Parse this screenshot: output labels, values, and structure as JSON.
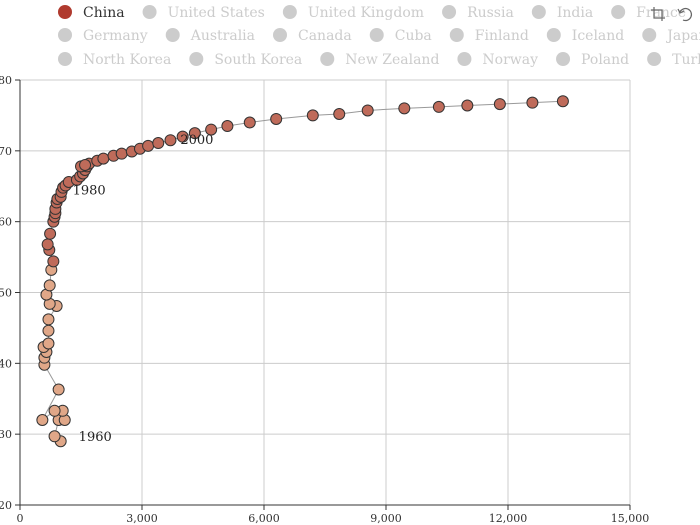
{
  "toolbox": {
    "icons": [
      "crop-icon",
      "restore-icon"
    ]
  },
  "chart_data": {
    "type": "scatter",
    "title": "",
    "xlabel": "",
    "ylabel": "",
    "xlim": [
      0,
      15000
    ],
    "ylim": [
      20,
      80
    ],
    "x_ticks": [
      "0",
      "3,000",
      "6,000",
      "9,000",
      "12,000",
      "15,000"
    ],
    "y_ticks": [
      "20",
      "30",
      "40",
      "50",
      "60",
      "70",
      "80"
    ],
    "grid": true,
    "legend_position": "top",
    "legend": [
      {
        "name": "China",
        "active": true
      },
      {
        "name": "United States",
        "active": false
      },
      {
        "name": "United Kingdom",
        "active": false
      },
      {
        "name": "Russia",
        "active": false
      },
      {
        "name": "India",
        "active": false
      },
      {
        "name": "France",
        "active": false
      },
      {
        "name": "Germany",
        "active": false
      },
      {
        "name": "Australia",
        "active": false
      },
      {
        "name": "Canada",
        "active": false
      },
      {
        "name": "Cuba",
        "active": false
      },
      {
        "name": "Finland",
        "active": false
      },
      {
        "name": "Iceland",
        "active": false
      },
      {
        "name": "Japan",
        "active": false
      },
      {
        "name": "North Korea",
        "active": false
      },
      {
        "name": "South Korea",
        "active": false
      },
      {
        "name": "New Zealand",
        "active": false
      },
      {
        "name": "Norway",
        "active": false
      },
      {
        "name": "Poland",
        "active": false
      },
      {
        "name": "Turkey",
        "active": false
      }
    ],
    "colors": {
      "active_legend": "#b03a2e",
      "inactive_legend": "#cccccc",
      "early_points": "#e0a788",
      "late_points": "#bf6b5a",
      "point_stroke": "#333333",
      "path": "#999999",
      "grid": "#cccccc",
      "axis": "#333333"
    },
    "series": [
      {
        "name": "China",
        "points": [
          [
            1000,
            29
          ],
          [
            850,
            29.7
          ],
          [
            950,
            32
          ],
          [
            1100,
            32
          ],
          [
            1050,
            33.3
          ],
          [
            850,
            33.3
          ],
          [
            550,
            32
          ],
          [
            950,
            36.3
          ],
          [
            600,
            39.8
          ],
          [
            600,
            40.8
          ],
          [
            650,
            41.6
          ],
          [
            580,
            42.3
          ],
          [
            700,
            42.8
          ],
          [
            700,
            44.6
          ],
          [
            700,
            46.2
          ],
          [
            900,
            48.1
          ],
          [
            730,
            48.4
          ],
          [
            650,
            49.7
          ],
          [
            730,
            51
          ],
          [
            770,
            53.2
          ],
          [
            820,
            54.4
          ],
          [
            720,
            56
          ],
          [
            680,
            56.8
          ],
          [
            740,
            58.3
          ],
          [
            820,
            60
          ],
          [
            850,
            60.7
          ],
          [
            870,
            61.2
          ],
          [
            870,
            61.8
          ],
          [
            900,
            62.7
          ],
          [
            920,
            63.2
          ],
          [
            1000,
            63.5
          ],
          [
            1020,
            64.2
          ],
          [
            1060,
            64.8
          ],
          [
            1120,
            65.1
          ],
          [
            1200,
            65.6
          ],
          [
            1400,
            65.9
          ],
          [
            1480,
            66.4
          ],
          [
            1550,
            66.8
          ],
          [
            1600,
            67.3
          ],
          [
            1650,
            67.8
          ],
          [
            1700,
            68.2
          ],
          [
            1500,
            67.8
          ],
          [
            1600,
            68
          ],
          [
            1900,
            68.6
          ],
          [
            2050,
            68.9
          ],
          [
            2300,
            69.3
          ],
          [
            2500,
            69.6
          ],
          [
            2750,
            69.9
          ],
          [
            2950,
            70.3
          ],
          [
            3150,
            70.7
          ],
          [
            3400,
            71.1
          ],
          [
            3700,
            71.5
          ],
          [
            4000,
            72
          ],
          [
            4300,
            72.5
          ],
          [
            4700,
            73
          ],
          [
            5100,
            73.5
          ],
          [
            5650,
            74
          ],
          [
            6300,
            74.5
          ],
          [
            7200,
            75
          ],
          [
            7850,
            75.2
          ],
          [
            8550,
            75.7
          ],
          [
            9450,
            76
          ],
          [
            10300,
            76.2
          ],
          [
            11000,
            76.4
          ],
          [
            11800,
            76.6
          ],
          [
            12600,
            76.8
          ],
          [
            13350,
            77
          ]
        ]
      }
    ],
    "early_count": 20,
    "annotations": [
      {
        "text": "1960",
        "x": 1850,
        "y": 29.6
      },
      {
        "text": "1980",
        "x": 1700,
        "y": 64.4
      },
      {
        "text": "2000",
        "x": 4350,
        "y": 71.5
      }
    ]
  }
}
